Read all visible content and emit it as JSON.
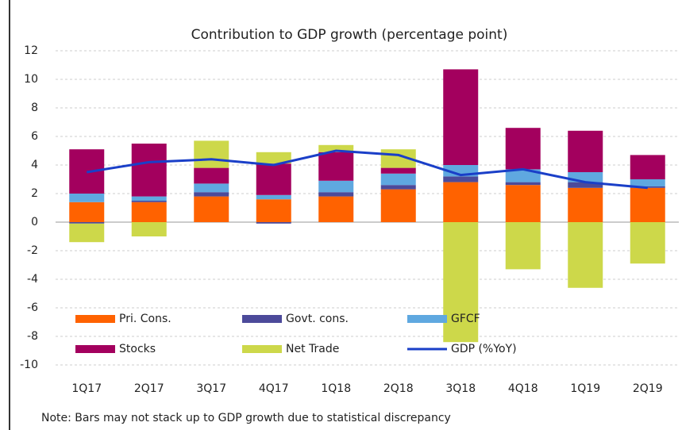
{
  "chart_data": {
    "type": "bar",
    "title": "Contribution to GDP growth (percentage point)",
    "note": "Note: Bars may not stack up to GDP growth due to statistical discrepancy",
    "stacked": true,
    "categories": [
      "1Q17",
      "2Q17",
      "3Q17",
      "4Q17",
      "1Q18",
      "2Q18",
      "3Q18",
      "4Q18",
      "1Q19",
      "2Q19"
    ],
    "series": [
      {
        "name": "Pri. Cons.",
        "color": "#ff6200",
        "values": [
          1.4,
          1.4,
          1.8,
          1.6,
          1.8,
          2.3,
          2.8,
          2.6,
          2.4,
          2.4
        ]
      },
      {
        "name": "Govt. cons.",
        "color": "#4c4a9a",
        "values": [
          -0.1,
          0.1,
          0.3,
          -0.1,
          0.3,
          0.3,
          0.4,
          0.2,
          0.4,
          0.1
        ]
      },
      {
        "name": "GFCF",
        "color": "#5fa8e0",
        "values": [
          0.6,
          0.3,
          0.6,
          0.3,
          0.8,
          0.8,
          0.8,
          0.9,
          0.7,
          0.5
        ]
      },
      {
        "name": "Stocks",
        "color": "#a3005e",
        "values": [
          3.1,
          3.7,
          1.1,
          2.2,
          2.0,
          0.4,
          6.7,
          2.9,
          2.9,
          1.7
        ]
      },
      {
        "name": "Net Trade",
        "color": "#cdd84a",
        "values": [
          -1.3,
          -1.0,
          1.9,
          0.8,
          0.5,
          1.3,
          -8.4,
          -3.3,
          -4.6,
          -2.9
        ]
      },
      {
        "name": "GDP (%YoY)",
        "type": "line",
        "color": "#1a3fc8",
        "values": [
          3.5,
          4.2,
          4.4,
          4.0,
          5.0,
          4.7,
          3.3,
          3.7,
          2.8,
          2.4
        ]
      }
    ],
    "ylim": [
      -10,
      12
    ],
    "yticks": [
      -10,
      -8,
      -6,
      -4,
      -2,
      0,
      2,
      4,
      6,
      8,
      10,
      12
    ],
    "grid": true
  }
}
